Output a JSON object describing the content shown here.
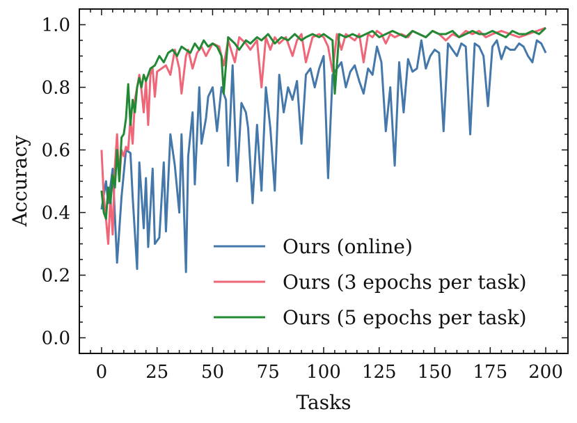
{
  "chart_data": {
    "type": "line",
    "title": "",
    "xlabel": "Tasks",
    "ylabel": "Accuracy",
    "xlim": [
      -10,
      210
    ],
    "ylim": [
      -0.05,
      1.05
    ],
    "xticks": [
      0,
      25,
      50,
      75,
      100,
      125,
      150,
      175,
      200
    ],
    "xtick_labels": [
      "0",
      "25",
      "50",
      "75",
      "100",
      "125",
      "150",
      "175",
      "200"
    ],
    "yticks": [
      0.0,
      0.2,
      0.4,
      0.6,
      0.8,
      1.0
    ],
    "ytick_labels": [
      "0.0",
      "0.2",
      "0.4",
      "0.6",
      "0.8",
      "1.0"
    ],
    "grid": false,
    "legend_position": "lower-right",
    "series": [
      {
        "name": "Ours (online)",
        "color": "#4477aa",
        "x": [
          0,
          2,
          3,
          5,
          7,
          9,
          11,
          13,
          14,
          16,
          17,
          19,
          20,
          21,
          23,
          24,
          26,
          28,
          29,
          31,
          33,
          35,
          36,
          38,
          39,
          41,
          42,
          44,
          45,
          47,
          48,
          50,
          52,
          54,
          56,
          57,
          59,
          61,
          63,
          65,
          66,
          68,
          70,
          72,
          74,
          76,
          78,
          80,
          82,
          84,
          86,
          88,
          90,
          92,
          94,
          96,
          98,
          100,
          102,
          104,
          106,
          108,
          110,
          112,
          114,
          116,
          118,
          120,
          122,
          124,
          126,
          128,
          130,
          132,
          134,
          136,
          138,
          140,
          142,
          144,
          146,
          148,
          150,
          152,
          154,
          156,
          158,
          160,
          162,
          164,
          166,
          168,
          170,
          172,
          174,
          176,
          178,
          180,
          182,
          184,
          186,
          188,
          190,
          192,
          194,
          196,
          198,
          200
        ],
        "y": [
          0.41,
          0.5,
          0.43,
          0.54,
          0.24,
          0.45,
          0.6,
          0.59,
          0.45,
          0.22,
          0.56,
          0.35,
          0.51,
          0.29,
          0.54,
          0.3,
          0.32,
          0.56,
          0.34,
          0.65,
          0.55,
          0.4,
          0.65,
          0.21,
          0.58,
          0.72,
          0.49,
          0.8,
          0.62,
          0.7,
          0.77,
          0.8,
          0.66,
          0.8,
          0.76,
          0.55,
          0.87,
          0.5,
          0.75,
          0.72,
          0.67,
          0.43,
          0.68,
          0.47,
          0.8,
          0.67,
          0.47,
          0.84,
          0.72,
          0.8,
          0.76,
          0.82,
          0.62,
          0.84,
          0.86,
          0.8,
          0.86,
          0.9,
          0.51,
          0.84,
          0.86,
          0.88,
          0.8,
          0.85,
          0.87,
          0.82,
          0.78,
          0.86,
          0.84,
          0.93,
          0.88,
          0.66,
          0.8,
          0.55,
          0.88,
          0.72,
          0.89,
          0.85,
          0.86,
          0.95,
          0.86,
          0.9,
          0.92,
          0.91,
          0.66,
          0.94,
          0.92,
          0.9,
          0.94,
          0.93,
          0.65,
          0.94,
          0.93,
          0.9,
          0.74,
          0.93,
          0.95,
          0.89,
          0.93,
          0.92,
          0.92,
          0.94,
          0.93,
          0.9,
          0.88,
          0.95,
          0.94,
          0.91
        ]
      },
      {
        "name": "Ours (3 epochs per task)",
        "color": "#ee6677",
        "x": [
          0,
          1,
          2,
          3,
          4,
          5,
          6,
          7,
          8,
          9,
          10,
          11,
          12,
          13,
          14,
          15,
          16,
          17,
          18,
          19,
          20,
          21,
          22,
          23,
          24,
          25,
          27,
          29,
          31,
          33,
          35,
          36,
          38,
          39,
          41,
          43,
          45,
          47,
          50,
          53,
          55,
          57,
          60,
          62,
          65,
          67,
          70,
          72,
          74,
          76,
          78,
          80,
          83,
          86,
          88,
          90,
          92,
          95,
          98,
          100,
          102,
          104,
          106,
          108,
          110,
          112,
          114,
          116,
          118,
          120,
          122,
          124,
          126,
          128,
          130,
          132,
          135,
          138,
          140,
          143,
          146,
          149,
          152,
          155,
          158,
          161,
          164,
          167,
          170,
          173,
          176,
          180,
          184,
          188,
          192,
          196,
          200
        ],
        "y": [
          0.6,
          0.45,
          0.38,
          0.3,
          0.45,
          0.33,
          0.55,
          0.65,
          0.5,
          0.6,
          0.58,
          0.61,
          0.6,
          0.7,
          0.62,
          0.76,
          0.8,
          0.84,
          0.79,
          0.72,
          0.82,
          0.68,
          0.84,
          0.86,
          0.77,
          0.85,
          0.86,
          0.87,
          0.84,
          0.92,
          0.86,
          0.78,
          0.9,
          0.92,
          0.86,
          0.91,
          0.93,
          0.9,
          0.94,
          0.93,
          0.87,
          0.95,
          0.88,
          0.96,
          0.94,
          0.92,
          0.95,
          0.8,
          0.96,
          0.92,
          0.96,
          0.94,
          0.96,
          0.9,
          0.95,
          0.97,
          0.88,
          0.96,
          0.97,
          0.96,
          0.93,
          0.85,
          0.97,
          0.92,
          0.97,
          0.96,
          0.95,
          0.97,
          0.88,
          0.97,
          0.96,
          0.98,
          0.97,
          0.94,
          0.97,
          0.96,
          0.97,
          0.96,
          0.98,
          0.97,
          0.96,
          0.98,
          0.97,
          0.95,
          0.97,
          0.96,
          0.98,
          0.97,
          0.98,
          0.96,
          0.97,
          0.98,
          0.97,
          0.96,
          0.97,
          0.98,
          0.99
        ]
      },
      {
        "name": "Ours (5 epochs per task)",
        "color": "#228833",
        "x": [
          0,
          1,
          2,
          3,
          4,
          5,
          6,
          7,
          8,
          9,
          10,
          11,
          12,
          13,
          14,
          15,
          16,
          17,
          18,
          19,
          20,
          22,
          24,
          26,
          28,
          30,
          32,
          34,
          36,
          38,
          40,
          42,
          44,
          46,
          48,
          50,
          52,
          54,
          55,
          57,
          60,
          62,
          65,
          67,
          70,
          72,
          75,
          78,
          81,
          84,
          87,
          90,
          92,
          95,
          98,
          100,
          102,
          104,
          105,
          107,
          110,
          113,
          116,
          119,
          122,
          125,
          128,
          131,
          134,
          137,
          140,
          143,
          146,
          149,
          152,
          155,
          158,
          161,
          164,
          167,
          170,
          173,
          176,
          179,
          182,
          185,
          188,
          191,
          194,
          197,
          200
        ],
        "y": [
          0.47,
          0.4,
          0.38,
          0.48,
          0.43,
          0.52,
          0.48,
          0.6,
          0.5,
          0.64,
          0.65,
          0.7,
          0.81,
          0.68,
          0.76,
          0.72,
          0.8,
          0.83,
          0.8,
          0.84,
          0.82,
          0.86,
          0.87,
          0.9,
          0.88,
          0.91,
          0.92,
          0.9,
          0.93,
          0.92,
          0.91,
          0.94,
          0.92,
          0.95,
          0.93,
          0.94,
          0.93,
          0.9,
          0.78,
          0.96,
          0.94,
          0.92,
          0.95,
          0.94,
          0.96,
          0.95,
          0.97,
          0.94,
          0.96,
          0.95,
          0.97,
          0.95,
          0.96,
          0.97,
          0.96,
          0.97,
          0.96,
          0.95,
          0.78,
          0.97,
          0.96,
          0.97,
          0.96,
          0.97,
          0.98,
          0.96,
          0.97,
          0.98,
          0.97,
          0.96,
          0.98,
          0.97,
          0.96,
          0.98,
          0.97,
          0.97,
          0.98,
          0.96,
          0.97,
          0.98,
          0.97,
          0.97,
          0.98,
          0.97,
          0.96,
          0.98,
          0.97,
          0.97,
          0.98,
          0.97,
          0.99
        ]
      }
    ]
  }
}
